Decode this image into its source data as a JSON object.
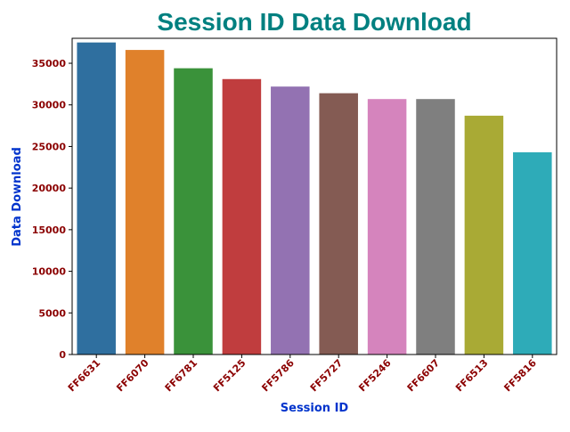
{
  "chart_data": {
    "type": "bar",
    "title": "Session ID Data Download",
    "xlabel": "Session ID",
    "ylabel": "Data Download",
    "categories": [
      "FF6631",
      "FF6070",
      "FF6781",
      "FF5125",
      "FF5786",
      "FF5727",
      "FF5246",
      "FF6607",
      "FF6513",
      "FF5816"
    ],
    "values": [
      37500,
      36600,
      34400,
      33100,
      32200,
      31400,
      30700,
      30700,
      28700,
      24300
    ],
    "bar_colors": [
      "#2f6f9f",
      "#e0812b",
      "#3a923a",
      "#c03d3e",
      "#9372b2",
      "#845b53",
      "#d584bd",
      "#7f7f7f",
      "#a9aa35",
      "#2eabb8"
    ],
    "ylim": [
      0,
      38000
    ],
    "yticks": [
      0,
      5000,
      10000,
      15000,
      20000,
      25000,
      30000,
      35000
    ],
    "grid": false,
    "legend": "none",
    "title_color": "#008080",
    "axis_label_color": "#0033cc",
    "tick_label_color": "#8b0000"
  }
}
